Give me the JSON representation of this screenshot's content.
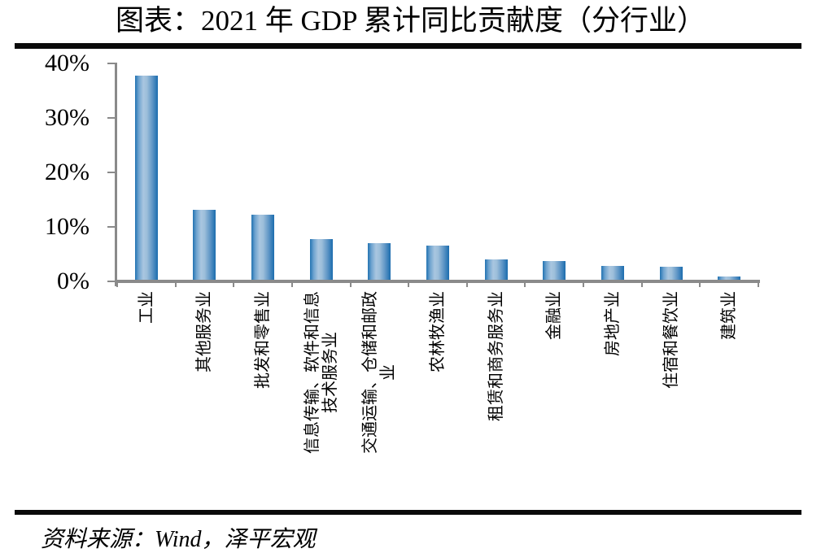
{
  "page": {
    "title": "图表：2021 年 GDP 累计同比贡献度（分行业）",
    "source": "资料来源：Wind，泽平宏观"
  },
  "chart_data": {
    "type": "bar",
    "title": "图表：2021 年 GDP 累计同比贡献度（分行业）",
    "unit": "%",
    "categories": [
      "工业",
      "其他服务业",
      "批发和零售业",
      "信息传输、软件和信息技术服务业",
      "交通运输、仓储和邮政业",
      "农林牧渔业",
      "租赁和商务服务业",
      "金融业",
      "房地产业",
      "住宿和餐饮业",
      "建筑业"
    ],
    "category_label_lines": [
      [
        "工业"
      ],
      [
        "其他服务业"
      ],
      [
        "批发和零售业"
      ],
      [
        "信息传输、软件和信息",
        "技术服务业"
      ],
      [
        "交通运输、仓储和邮政",
        "业"
      ],
      [
        "农林牧渔业"
      ],
      [
        "租赁和商务服务业"
      ],
      [
        "金融业"
      ],
      [
        "房地产业"
      ],
      [
        "住宿和餐饮业"
      ],
      [
        "建筑业"
      ]
    ],
    "values": [
      37.8,
      13.2,
      12.3,
      7.7,
      7.0,
      6.6,
      4.1,
      3.8,
      2.9,
      2.7,
      0.9
    ],
    "ylim": [
      0,
      40
    ],
    "ytick_values": [
      0,
      10,
      20,
      30,
      40
    ],
    "ytick_labels": [
      "0%",
      "10%",
      "20%",
      "30%",
      "40%"
    ],
    "grid": false,
    "legend": false,
    "xlabel": "",
    "ylabel": "",
    "source": "资料来源：Wind，泽平宏观",
    "colors": {
      "bar_edge": "#1b6cae",
      "bar_light": "#a9c6e0",
      "axis": "#8a8a8a",
      "text": "#000000",
      "rule": "#0a0a0a"
    }
  }
}
